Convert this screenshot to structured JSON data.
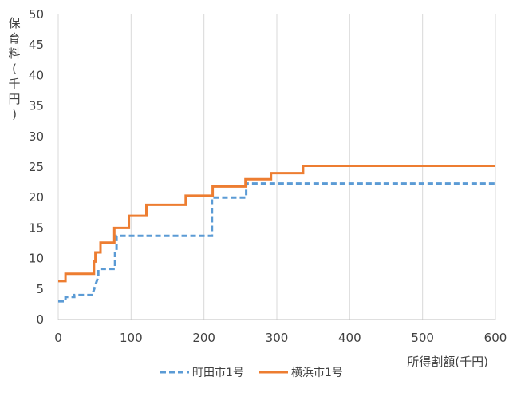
{
  "chart_data": {
    "type": "line",
    "title": "",
    "xlabel": "所得割額(千円)",
    "ylabel": "保育料(千円)",
    "xlim": [
      0,
      600
    ],
    "ylim": [
      0,
      50
    ],
    "x_ticks": [
      "0",
      "100",
      "200",
      "300",
      "400",
      "500",
      "600"
    ],
    "y_ticks": [
      "0",
      "5",
      "10",
      "15",
      "20",
      "25",
      "30",
      "35",
      "40",
      "45",
      "50"
    ],
    "grid": "vertical",
    "legend_position": "bottom",
    "series": [
      {
        "name": "町田市1号",
        "color": "#5b9bd5",
        "dash": "dashed",
        "points": [
          [
            0,
            3.0
          ],
          [
            10,
            3.0
          ],
          [
            10,
            3.7
          ],
          [
            22,
            3.7
          ],
          [
            22,
            4.0
          ],
          [
            48,
            4.0
          ],
          [
            48,
            4.5
          ],
          [
            52,
            6.0
          ],
          [
            55,
            7.0
          ],
          [
            55,
            8.3
          ],
          [
            78,
            8.3
          ],
          [
            78,
            11.3
          ],
          [
            80,
            11.3
          ],
          [
            80,
            13.7
          ],
          [
            211,
            13.7
          ],
          [
            211,
            20.0
          ],
          [
            258,
            20.0
          ],
          [
            258,
            22.3
          ],
          [
            600,
            22.3
          ]
        ]
      },
      {
        "name": "横浜市1号",
        "color": "#ed7d31",
        "dash": "solid",
        "points": [
          [
            0,
            6.3
          ],
          [
            10,
            6.3
          ],
          [
            10,
            7.5
          ],
          [
            49,
            7.5
          ],
          [
            49,
            9.5
          ],
          [
            51,
            9.5
          ],
          [
            51,
            11.0
          ],
          [
            58,
            11.0
          ],
          [
            58,
            12.6
          ],
          [
            77,
            12.6
          ],
          [
            77,
            15.0
          ],
          [
            97,
            15.0
          ],
          [
            97,
            17.0
          ],
          [
            121,
            17.0
          ],
          [
            121,
            18.8
          ],
          [
            175,
            18.8
          ],
          [
            175,
            20.3
          ],
          [
            212,
            20.3
          ],
          [
            212,
            21.8
          ],
          [
            257,
            21.8
          ],
          [
            257,
            23.0
          ],
          [
            292,
            23.0
          ],
          [
            292,
            24.0
          ],
          [
            336,
            24.0
          ],
          [
            336,
            25.2
          ],
          [
            600,
            25.2
          ]
        ]
      }
    ]
  }
}
